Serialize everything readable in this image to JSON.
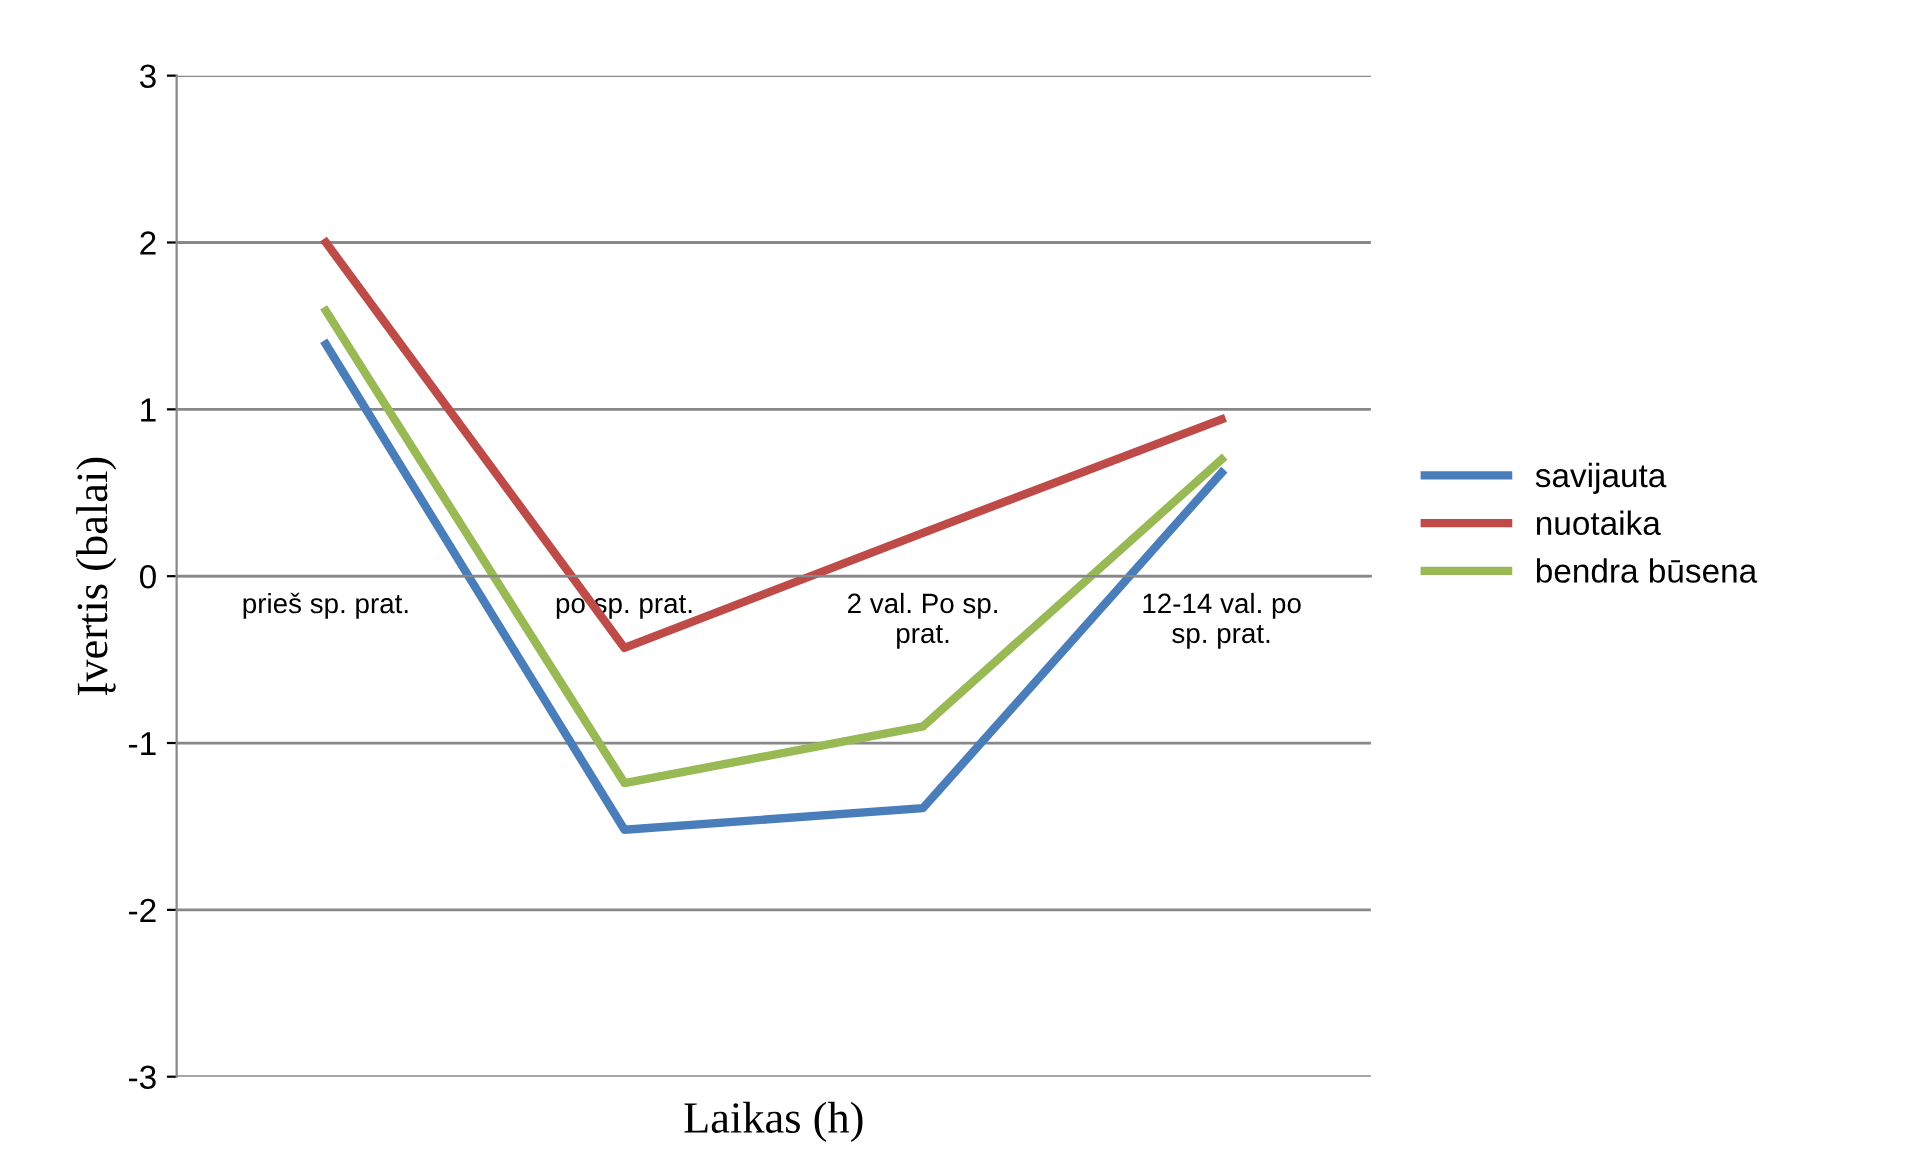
{
  "chart_data": {
    "type": "line",
    "xlabel": "Laikas (h)",
    "ylabel": "Įvertis (balai)",
    "categories": [
      "prieš sp. prat.",
      "po sp. prat.",
      "2 val. Po sp.\nprat.",
      "12-14 val. po\nsp. prat."
    ],
    "series": [
      {
        "name": "savijauta",
        "color": "#4a7ebb",
        "values": [
          1.39,
          -1.52,
          -1.39,
          0.62
        ]
      },
      {
        "name": "nuotaika",
        "color": "#be4b48",
        "values": [
          2.0,
          -0.43,
          0.26,
          0.94
        ]
      },
      {
        "name": "bendra būsena",
        "color": "#98b954",
        "values": [
          1.59,
          -1.24,
          -0.9,
          0.7
        ]
      }
    ],
    "ylim": [
      -3,
      3
    ],
    "yticks": [
      -3,
      -2,
      -1,
      0,
      1,
      2,
      3
    ],
    "grid": "y",
    "legend": "right",
    "marker": "none",
    "line_style": "solid"
  }
}
